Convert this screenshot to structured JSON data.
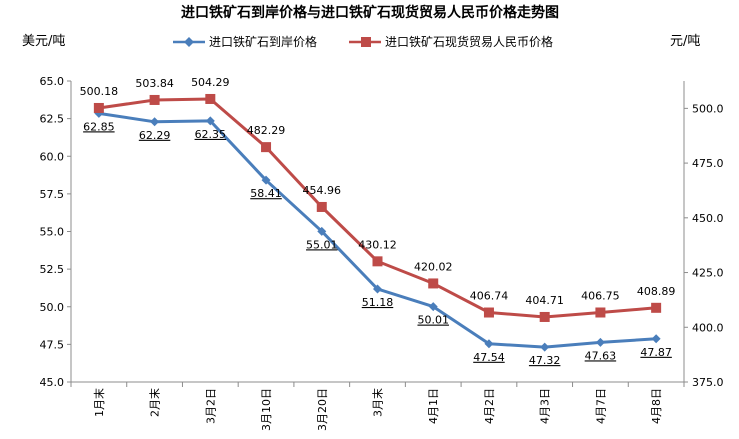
{
  "chart_data": {
    "type": "line",
    "title": "进口铁矿石到岸价格与进口铁矿石现货贸易人民币价格走势图",
    "left_unit": "美元/吨",
    "right_unit": "元/吨",
    "categories": [
      "1月末",
      "2月末",
      "3月2日",
      "3月10日",
      "3月20日",
      "3月末",
      "4月1日",
      "4月2日",
      "4月3日",
      "4月7日",
      "4月8日"
    ],
    "left_axis": {
      "min": 45.0,
      "max": 65.0,
      "step": 2.5,
      "ticks": [
        "45.0",
        "47.5",
        "50.0",
        "52.5",
        "55.0",
        "57.5",
        "60.0",
        "62.5",
        "65.0"
      ]
    },
    "right_axis": {
      "min": 375.0,
      "max": 512.5,
      "step": 25,
      "ticks": [
        "375.0",
        "400.0",
        "425.0",
        "450.0",
        "475.0",
        "500.0"
      ]
    },
    "series": [
      {
        "name": "进口铁矿石到岸价格",
        "axis": "left",
        "color": "#4a7ebb",
        "marker": "diamond",
        "values": [
          62.85,
          62.29,
          62.35,
          58.41,
          55.01,
          51.18,
          50.01,
          47.54,
          47.32,
          47.63,
          47.87
        ],
        "labels": [
          "62.85",
          "62.29",
          "62.35",
          "58.41",
          "55.01",
          "51.18",
          "50.01",
          "47.54",
          "47.32",
          "47.63",
          "47.87"
        ]
      },
      {
        "name": "进口铁矿石现货贸易人民币价格",
        "axis": "right",
        "color": "#be4b48",
        "marker": "square",
        "values": [
          500.18,
          503.84,
          504.29,
          482.29,
          454.96,
          430.12,
          420.02,
          406.74,
          404.71,
          406.75,
          408.89
        ],
        "labels": [
          "500.18",
          "503.84",
          "504.29",
          "482.29",
          "454.96",
          "430.12",
          "420.02",
          "406.74",
          "404.71",
          "406.75",
          "408.89"
        ]
      }
    ],
    "legend_position": "top",
    "grid": false
  }
}
